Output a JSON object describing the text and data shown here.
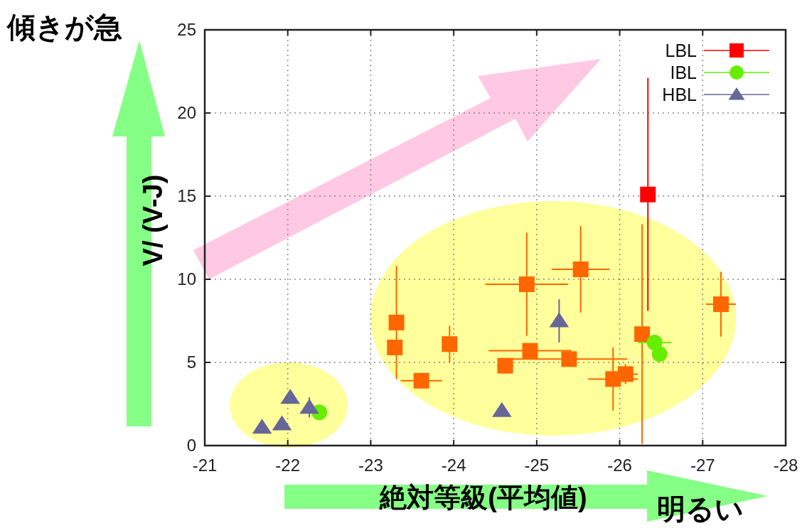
{
  "chart_data": {
    "type": "scatter",
    "xlabel": "絶対等級(平均値)",
    "ylabel": "V/ (V-J)",
    "annotations": [
      "傾きが急",
      "明るい"
    ],
    "xlim": [
      -21,
      -28
    ],
    "ylim": [
      0,
      25
    ],
    "xticks": [
      -21,
      -22,
      -23,
      -24,
      -25,
      -26,
      -27,
      -28
    ],
    "yticks": [
      0,
      5,
      10,
      15,
      20,
      25
    ],
    "grid": true,
    "legend": "top right",
    "series": [
      {
        "name": "LBL",
        "color": "#ff0000",
        "marker": "square",
        "x": [
          -23.31,
          -23.29,
          -23.61,
          -23.95,
          -24.62,
          -24.88,
          -25.53,
          -24.92,
          -25.39,
          -25.92,
          -26.07,
          -26.27,
          -26.34,
          -27.22
        ],
        "values": [
          7.4,
          5.9,
          3.9,
          6.1,
          4.8,
          9.7,
          10.6,
          5.7,
          5.2,
          4.0,
          4.3,
          6.7,
          15.1,
          8.5
        ],
        "colors": [
          "#ff6600",
          "#ff6600",
          "#ff6600",
          "#ff6600",
          "#ff6600",
          "#ff6600",
          "#ff6600",
          "#ff6600",
          "#ff6600",
          "#ff6600",
          "#ff6600",
          "#ff6600",
          "#ff0000",
          "#ff6600"
        ],
        "errors": [
          3.4,
          null,
          null,
          1.1,
          null,
          3.1,
          2.6,
          null,
          null,
          1.9,
          0.6,
          6.6,
          7.0,
          1.95
        ],
        "xerrors": [
          null,
          null,
          0.25,
          null,
          0.1,
          0.5,
          0.35,
          0.5,
          0.7,
          0.3,
          0.15,
          null,
          null,
          0.18
        ]
      },
      {
        "name": "IBL",
        "color": "#66ee00",
        "marker": "circle",
        "x": [
          -22.38,
          -26.42,
          -26.48
        ],
        "values": [
          2.0,
          6.2,
          5.5
        ],
        "colors": [
          "#66ee00",
          "#66ee00",
          "#66ee00"
        ],
        "errors": [
          null,
          null,
          0.4
        ],
        "xerrors": [
          null,
          0.2,
          null
        ]
      },
      {
        "name": "HBL",
        "color": "#666699",
        "marker": "triangle",
        "x": [
          -21.69,
          -21.93,
          -22.03,
          -22.26,
          -24.58,
          -25.27
        ],
        "values": [
          1.1,
          1.3,
          2.9,
          2.3,
          2.1,
          7.5
        ],
        "colors": [
          "#666699",
          "#666699",
          "#666699",
          "#666699",
          "#666699",
          "#666699"
        ],
        "errors": [
          null,
          null,
          0.3,
          0.6,
          null,
          1.3
        ],
        "xerrors": [
          null,
          null,
          null,
          null,
          null,
          null
        ]
      }
    ]
  }
}
